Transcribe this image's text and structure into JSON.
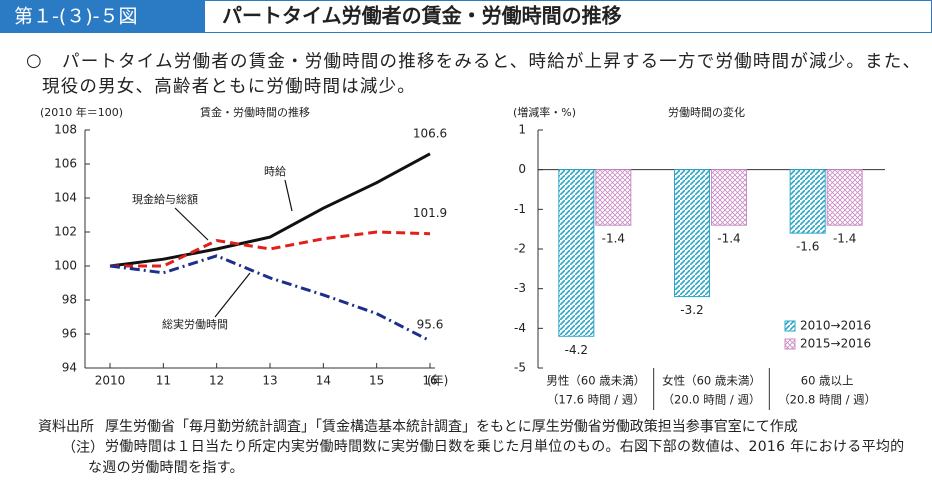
{
  "header": {
    "label": "第１-(３)-５図",
    "title": "パートタイム労働者の賃金・労働時間の推移"
  },
  "summary": {
    "bullet": "○",
    "text": "パートタイム労働者の賃金・労働時間の推移をみると、時給が上昇する一方で労働時間が減少。また、現役の男女、高齢者ともに労働時間は減少。"
  },
  "chart_data": [
    {
      "type": "line",
      "title": "賃金・労働時間の推移",
      "ylabel": "(2010 年＝100)",
      "x_unit": "(年)",
      "categories": [
        "2010",
        "11",
        "12",
        "13",
        "14",
        "15",
        "16"
      ],
      "ylim": [
        94,
        108
      ],
      "yticks": [
        94,
        96,
        98,
        100,
        102,
        104,
        106,
        108
      ],
      "series": [
        {
          "name": "時給",
          "color": "#111111",
          "dash": "solid",
          "values": [
            100,
            100.4,
            101.0,
            101.7,
            103.4,
            104.9,
            106.6
          ]
        },
        {
          "name": "現金給与総額",
          "color": "#e0201b",
          "dash": "dashed",
          "values": [
            100,
            100,
            101.5,
            101.0,
            101.6,
            102.0,
            101.9
          ]
        },
        {
          "name": "総実労働時間",
          "color": "#1c2f8c",
          "dash": "dashdot",
          "values": [
            100,
            99.6,
            100.6,
            99.3,
            98.3,
            97.2,
            95.6
          ]
        }
      ]
    },
    {
      "type": "bar",
      "title": "労働時間の変化",
      "ylabel": "(増減率・%)",
      "categories": [
        "男性（60 歳未満）",
        "女性（60 歳未満）",
        "60 歳以上"
      ],
      "category_notes": [
        "（17.6 時間 / 週）",
        "（20.0 時間 / 週）",
        "（20.8 時間 / 週）"
      ],
      "ylim": [
        -5,
        1
      ],
      "yticks": [
        -5,
        -4,
        -3,
        -2,
        -1,
        0,
        1
      ],
      "legend": "lower right",
      "series": [
        {
          "name": "2010→2016",
          "color": "#2aa6c8",
          "values": [
            -4.2,
            -3.2,
            -1.6
          ]
        },
        {
          "name": "2015→2016",
          "color": "#c98cc4",
          "values": [
            -1.4,
            -1.4,
            -1.4
          ]
        }
      ]
    }
  ],
  "notes": [
    {
      "label": "資料出所",
      "text": "厚生労働省「毎月勤労統計調査」「賃金構造基本統計調査」をもとに厚生労働省労働政策担当参事官室にて作成"
    },
    {
      "label": "（注）",
      "text": "労働時間は１日当たり所定内実労働時間数に実労働日数を乗じた月単位のもの。右図下部の数値は、2016 年における平均的な週の労働時間を指す。"
    }
  ]
}
